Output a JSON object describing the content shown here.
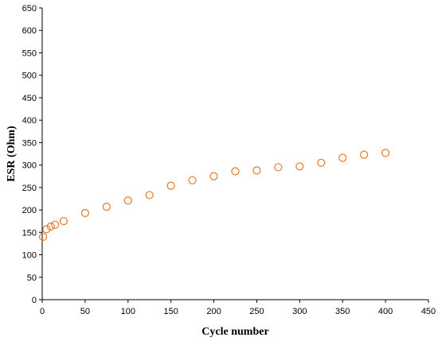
{
  "chart_data": {
    "type": "scatter",
    "title": "",
    "xlabel": "Cycle number",
    "ylabel": "ESR (Ohm)",
    "xlim": [
      0,
      450
    ],
    "ylim": [
      0,
      650
    ],
    "xticks": [
      0,
      50,
      100,
      150,
      200,
      250,
      300,
      350,
      400,
      450
    ],
    "yticks": [
      0,
      50,
      100,
      150,
      200,
      250,
      300,
      350,
      400,
      450,
      500,
      550,
      600,
      650
    ],
    "grid": false,
    "legend": "none",
    "marker_color": "#E87722",
    "series": [
      {
        "x": [
          1,
          5,
          10,
          15,
          25,
          50,
          75,
          100,
          125,
          150,
          175,
          200,
          225,
          250,
          275,
          300,
          325,
          350,
          375,
          400
        ],
        "y": [
          140,
          157,
          163,
          167,
          175,
          193,
          207,
          221,
          233,
          254,
          266,
          275,
          286,
          288,
          295,
          297,
          305,
          316,
          323,
          327
        ]
      }
    ]
  }
}
